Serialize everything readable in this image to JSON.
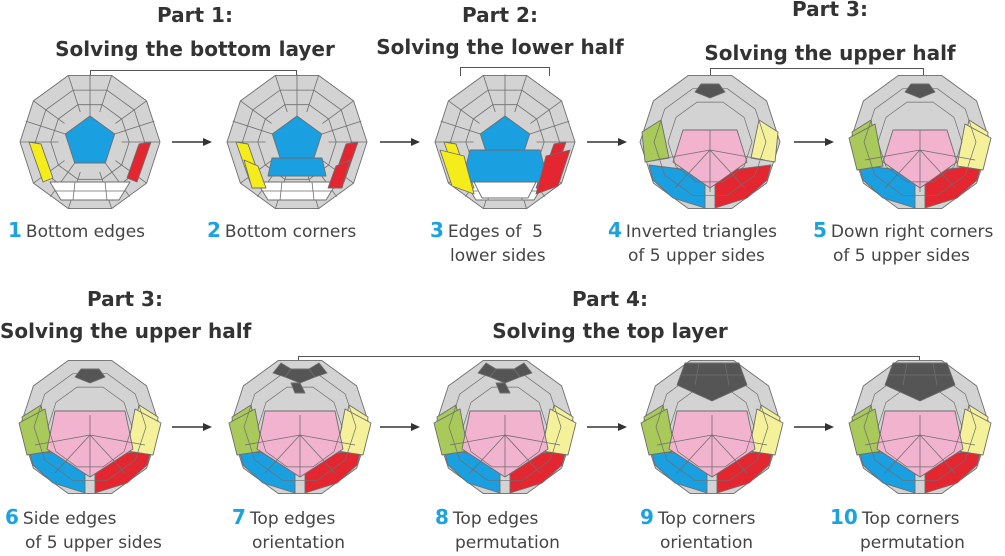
{
  "parts": {
    "p1": {
      "line1": "Part 1:",
      "line2": "Solving the bottom layer"
    },
    "p2": {
      "line1": "Part 2:",
      "line2": "Solving the lower half"
    },
    "p3a": {
      "line1": "Part 3:",
      "line2": "Solving the upper half"
    },
    "p3b": {
      "line1": "Part 3:",
      "line2": "Solving the upper half"
    },
    "p4": {
      "line1": "Part 4:",
      "line2": "Solving the top layer"
    }
  },
  "steps": [
    {
      "num": "1",
      "l1": "Bottom edges",
      "l2": ""
    },
    {
      "num": "2",
      "l1": "Bottom corners",
      "l2": ""
    },
    {
      "num": "3",
      "l1": "Edges of  5",
      "l2": "lower sides"
    },
    {
      "num": "4",
      "l1": "Inverted triangles",
      "l2": "of 5 upper sides"
    },
    {
      "num": "5",
      "l1": "Down right corners",
      "l2": "of 5 upper sides"
    },
    {
      "num": "6",
      "l1": "Side edges",
      "l2": "of 5 upper sides"
    },
    {
      "num": "7",
      "l1": "Top edges",
      "l2": "orientation"
    },
    {
      "num": "8",
      "l1": "Top edges",
      "l2": "permutation"
    },
    {
      "num": "9",
      "l1": "Top corners",
      "l2": "orientation"
    },
    {
      "num": "10",
      "l1": "Top corners",
      "l2": "permutation"
    }
  ],
  "colors": {
    "accent": "#1aa3df",
    "gray": "#d3d3d3",
    "blue": "#1a9fe0",
    "red": "#e3262f",
    "yellow": "#f5ec1c",
    "pink": "#f2b3cf",
    "lightyellow": "#f5f19a",
    "green": "#a9c95a",
    "dark": "#555555"
  }
}
